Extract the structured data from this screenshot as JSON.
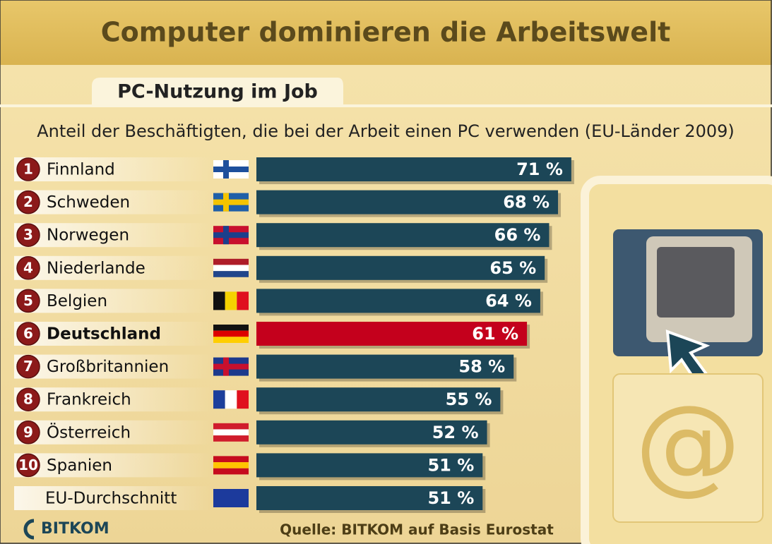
{
  "chart_data": {
    "type": "bar",
    "orientation": "horizontal",
    "title": "Computer dominieren die Arbeitswelt",
    "tab": "PC-Nutzung im Job",
    "subtitle": "Anteil der Beschäftigten, die bei der Arbeit einen PC verwenden (EU-Länder 2009)",
    "ranks": [
      1,
      2,
      3,
      4,
      5,
      6,
      7,
      8,
      9,
      10,
      null
    ],
    "categories": [
      "Finnland",
      "Schweden",
      "Norwegen",
      "Niederlande",
      "Belgien",
      "Deutschland",
      "Großbritannien",
      "Frankreich",
      "Österreich",
      "Spanien",
      "EU-Durchschnitt"
    ],
    "values": [
      71,
      68,
      66,
      65,
      64,
      61,
      58,
      55,
      52,
      51,
      51
    ],
    "value_labels": [
      "71 %",
      "68 %",
      "66 %",
      "65 %",
      "64 %",
      "61 %",
      "58 %",
      "55 %",
      "52 %",
      "51 %",
      "51 %"
    ],
    "colors": [
      "#1c4657",
      "#1c4657",
      "#1c4657",
      "#1c4657",
      "#1c4657",
      "#c4001c",
      "#1c4657",
      "#1c4657",
      "#1c4657",
      "#1c4657",
      "#1c4657"
    ],
    "source": "Quelle: BITKOM auf Basis Eurostat",
    "logo": "BITKOM",
    "icon_text": "@"
  }
}
